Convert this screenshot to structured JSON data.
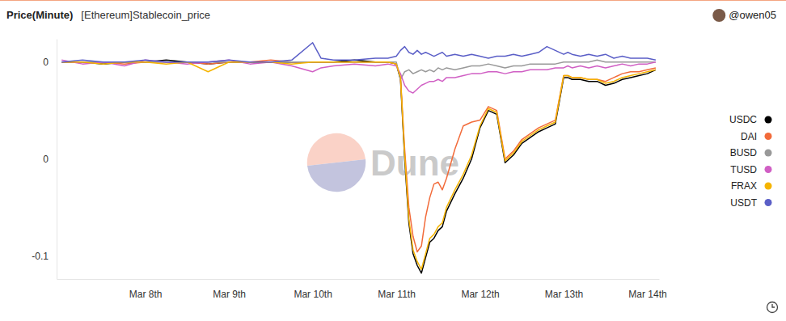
{
  "chart_data": {
    "type": "line",
    "title": "Price(Minute)",
    "subtitle": "[Ethereum]Stablecoin_price",
    "author": "@owen05",
    "watermark": "Dune",
    "x": [
      7.0,
      7.25,
      7.5,
      7.75,
      8.0,
      8.25,
      8.5,
      8.75,
      9.0,
      9.25,
      9.5,
      9.75,
      10.0,
      10.1,
      10.25,
      10.5,
      10.75,
      10.9,
      11.0,
      11.05,
      11.1,
      11.15,
      11.2,
      11.25,
      11.3,
      11.35,
      11.4,
      11.45,
      11.5,
      11.55,
      11.6,
      11.7,
      11.8,
      11.9,
      12.0,
      12.1,
      12.2,
      12.3,
      12.4,
      12.5,
      12.6,
      12.7,
      12.8,
      12.9,
      13.0,
      13.05,
      13.1,
      13.2,
      13.3,
      13.4,
      13.5,
      13.6,
      13.7,
      13.8,
      13.9,
      14.0,
      14.1
    ],
    "series": [
      {
        "name": "USDC",
        "color": "#000000",
        "values": [
          0,
          0,
          -0.001,
          0,
          0,
          0.001,
          0,
          -0.001,
          0,
          0,
          0,
          0,
          0,
          0,
          0,
          0.001,
          0,
          0,
          -0.001,
          -0.009,
          -0.05,
          -0.083,
          -0.099,
          -0.105,
          -0.109,
          -0.101,
          -0.093,
          -0.091,
          -0.087,
          -0.085,
          -0.077,
          -0.068,
          -0.06,
          -0.05,
          -0.034,
          -0.025,
          -0.027,
          -0.052,
          -0.048,
          -0.042,
          -0.039,
          -0.036,
          -0.034,
          -0.032,
          -0.008,
          -0.008,
          -0.009,
          -0.009,
          -0.01,
          -0.01,
          -0.012,
          -0.011,
          -0.009,
          -0.008,
          -0.007,
          -0.006,
          -0.004
        ]
      },
      {
        "name": "DAI",
        "color": "#f26b3a",
        "values": [
          0,
          0,
          0,
          -0.001,
          0,
          0,
          0,
          -0.001,
          0,
          0,
          0.001,
          0,
          0,
          0,
          0,
          0,
          0,
          0,
          -0.001,
          -0.008,
          -0.045,
          -0.075,
          -0.09,
          -0.098,
          -0.095,
          -0.08,
          -0.07,
          -0.063,
          -0.062,
          -0.066,
          -0.06,
          -0.045,
          -0.033,
          -0.031,
          -0.03,
          -0.023,
          -0.025,
          -0.05,
          -0.046,
          -0.04,
          -0.037,
          -0.034,
          -0.032,
          -0.03,
          -0.007,
          -0.007,
          -0.008,
          -0.008,
          -0.009,
          -0.009,
          -0.01,
          -0.008,
          -0.006,
          -0.005,
          -0.005,
          -0.004,
          -0.003
        ]
      },
      {
        "name": "BUSD",
        "color": "#999999",
        "values": [
          0,
          0,
          0,
          0,
          0,
          0,
          0,
          0,
          0,
          0,
          0,
          0,
          0,
          0,
          0,
          0,
          0,
          0,
          0,
          -0.009,
          -0.005,
          -0.004,
          -0.006,
          -0.005,
          -0.004,
          -0.005,
          -0.004,
          -0.005,
          -0.003,
          -0.004,
          -0.003,
          -0.004,
          -0.003,
          -0.002,
          -0.002,
          -0.001,
          -0.002,
          -0.003,
          -0.002,
          -0.002,
          -0.001,
          -0.001,
          -0.001,
          -0.001,
          0,
          0,
          0,
          0,
          0,
          0.001,
          0,
          0,
          0,
          0,
          0,
          0,
          0
        ]
      },
      {
        "name": "TUSD",
        "color": "#d05fc4",
        "values": [
          0.001,
          -0.001,
          0,
          -0.002,
          0.001,
          0,
          -0.001,
          0,
          0.001,
          -0.001,
          0,
          -0.002,
          -0.005,
          -0.003,
          -0.002,
          -0.001,
          -0.002,
          -0.001,
          -0.002,
          -0.006,
          -0.012,
          -0.015,
          -0.016,
          -0.014,
          -0.012,
          -0.011,
          -0.01,
          -0.01,
          -0.009,
          -0.01,
          -0.008,
          -0.008,
          -0.007,
          -0.006,
          -0.006,
          -0.005,
          -0.005,
          -0.006,
          -0.005,
          -0.005,
          -0.004,
          -0.004,
          -0.004,
          -0.003,
          -0.003,
          -0.002,
          -0.003,
          -0.002,
          -0.003,
          -0.002,
          -0.003,
          -0.002,
          -0.001,
          -0.002,
          -0.001,
          -0.001,
          0
        ]
      },
      {
        "name": "FRAX",
        "color": "#f5b400",
        "values": [
          0,
          0,
          -0.001,
          0,
          0,
          -0.001,
          0,
          -0.005,
          0,
          0,
          0,
          -0.001,
          0,
          0,
          0,
          0,
          0,
          0,
          -0.001,
          -0.008,
          -0.048,
          -0.081,
          -0.097,
          -0.103,
          -0.107,
          -0.099,
          -0.091,
          -0.089,
          -0.085,
          -0.083,
          -0.075,
          -0.066,
          -0.058,
          -0.048,
          -0.033,
          -0.024,
          -0.026,
          -0.051,
          -0.047,
          -0.041,
          -0.038,
          -0.035,
          -0.033,
          -0.031,
          -0.007,
          -0.007,
          -0.008,
          -0.008,
          -0.009,
          -0.009,
          -0.011,
          -0.01,
          -0.008,
          -0.007,
          -0.006,
          -0.005,
          -0.004
        ]
      },
      {
        "name": "USDT",
        "color": "#5b5fc7",
        "values": [
          0,
          0.001,
          0,
          0,
          0.001,
          0,
          0,
          0,
          0.001,
          0,
          0,
          0.001,
          0.01,
          0.002,
          0.001,
          0.001,
          0.002,
          0.002,
          0.003,
          0.006,
          0.008,
          0.005,
          0.004,
          0.006,
          0.004,
          0.005,
          0.004,
          0.003,
          0.004,
          0.005,
          0.003,
          0.004,
          0.003,
          0.004,
          0.003,
          0.002,
          0.003,
          0.003,
          0.004,
          0.003,
          0.004,
          0.005,
          0.008,
          0.006,
          0.004,
          0.005,
          0.004,
          0.003,
          0.004,
          0.003,
          0.004,
          0.002,
          0.003,
          0.002,
          0.002,
          0.002,
          0.001
        ]
      }
    ],
    "xlim": [
      6.94,
      14.14
    ],
    "xticks": [
      {
        "value": 8,
        "label": "Mar 8th"
      },
      {
        "value": 9,
        "label": "Mar 9th"
      },
      {
        "value": 10,
        "label": "Mar 10th"
      },
      {
        "value": 11,
        "label": "Mar 11th"
      },
      {
        "value": 12,
        "label": "Mar 12th"
      },
      {
        "value": 13,
        "label": "Mar 13th"
      },
      {
        "value": 14,
        "label": "Mar 14th"
      }
    ],
    "ylim": [
      -0.112,
      0.012
    ],
    "yticks": [
      0,
      {
        "value": -0.05,
        "label": "0"
      },
      -0.1
    ],
    "grid": false,
    "legend": "right"
  }
}
